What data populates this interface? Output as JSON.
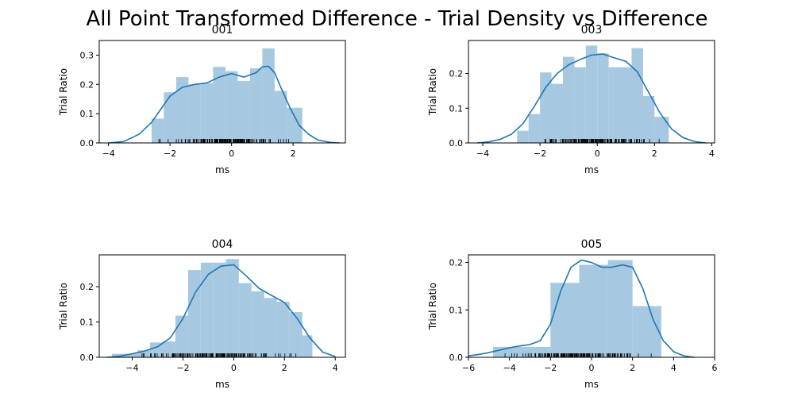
{
  "figure": {
    "suptitle": "All Point Transformed Difference - Trial Density vs Difference"
  },
  "colors": {
    "bar": "#a6c8e0",
    "kde": "#1f77b4",
    "rug": "#000000",
    "axes": "#000000"
  },
  "chart_data": [
    {
      "type": "bar",
      "title": "001",
      "xlabel": "ms",
      "ylabel": "Trial Ratio",
      "xlim": [
        -4.3,
        3.7
      ],
      "ylim": [
        0,
        0.35
      ],
      "xticks": [
        -4,
        -2,
        0,
        2
      ],
      "yticks": [
        0.0,
        0.1,
        0.2,
        0.3
      ],
      "ytick_decimals": 1,
      "bins": [
        {
          "x0": -2.6,
          "x1": -2.2,
          "value": 0.083
        },
        {
          "x0": -2.2,
          "x1": -1.8,
          "value": 0.173
        },
        {
          "x0": -1.8,
          "x1": -1.4,
          "value": 0.225
        },
        {
          "x0": -1.4,
          "x1": -1.0,
          "value": 0.2
        },
        {
          "x0": -1.0,
          "x1": -0.6,
          "value": 0.205
        },
        {
          "x0": -0.6,
          "x1": -0.2,
          "value": 0.26
        },
        {
          "x0": -0.2,
          "x1": 0.2,
          "value": 0.245
        },
        {
          "x0": 0.2,
          "x1": 0.6,
          "value": 0.212
        },
        {
          "x0": 0.6,
          "x1": 1.0,
          "value": 0.255
        },
        {
          "x0": 1.0,
          "x1": 1.4,
          "value": 0.323
        },
        {
          "x0": 1.4,
          "x1": 1.8,
          "value": 0.178
        },
        {
          "x0": 1.8,
          "x1": 2.3,
          "value": 0.12
        }
      ],
      "kde": {
        "x": [
          -4.0,
          -3.5,
          -3.0,
          -2.6,
          -2.3,
          -2.0,
          -1.6,
          -1.2,
          -0.8,
          -0.4,
          0.0,
          0.4,
          0.8,
          1.0,
          1.2,
          1.4,
          1.6,
          1.9,
          2.2,
          2.5,
          2.8,
          3.2,
          3.5
        ],
        "y": [
          0.0,
          0.005,
          0.03,
          0.07,
          0.115,
          0.16,
          0.19,
          0.2,
          0.205,
          0.225,
          0.237,
          0.225,
          0.24,
          0.26,
          0.262,
          0.24,
          0.19,
          0.12,
          0.06,
          0.03,
          0.01,
          0.002,
          0.0
        ]
      },
      "rug": [
        -2.6,
        2.3
      ]
    },
    {
      "type": "bar",
      "title": "003",
      "xlabel": "ms",
      "ylabel": "Trial Ratio",
      "xlim": [
        -4.5,
        4.1
      ],
      "ylim": [
        0,
        0.295
      ],
      "xticks": [
        -4,
        -2,
        0,
        2,
        4
      ],
      "yticks": [
        0.0,
        0.1,
        0.2
      ],
      "ytick_decimals": 1,
      "bins": [
        {
          "x0": -2.8,
          "x1": -2.4,
          "value": 0.035
        },
        {
          "x0": -2.4,
          "x1": -2.0,
          "value": 0.083
        },
        {
          "x0": -2.0,
          "x1": -1.6,
          "value": 0.203
        },
        {
          "x0": -1.6,
          "x1": -1.2,
          "value": 0.17
        },
        {
          "x0": -1.2,
          "x1": -0.8,
          "value": 0.248
        },
        {
          "x0": -0.8,
          "x1": -0.4,
          "value": 0.218
        },
        {
          "x0": -0.4,
          "x1": 0.0,
          "value": 0.28
        },
        {
          "x0": 0.0,
          "x1": 0.4,
          "value": 0.258
        },
        {
          "x0": 0.4,
          "x1": 0.8,
          "value": 0.218
        },
        {
          "x0": 0.8,
          "x1": 1.2,
          "value": 0.218
        },
        {
          "x0": 1.2,
          "x1": 1.6,
          "value": 0.273
        },
        {
          "x0": 1.6,
          "x1": 2.0,
          "value": 0.135
        },
        {
          "x0": 2.0,
          "x1": 2.5,
          "value": 0.075
        }
      ],
      "kde": {
        "x": [
          -4.2,
          -3.8,
          -3.4,
          -3.0,
          -2.6,
          -2.2,
          -1.8,
          -1.4,
          -1.0,
          -0.6,
          -0.2,
          0.2,
          0.6,
          1.0,
          1.4,
          1.8,
          2.2,
          2.6,
          3.0,
          3.4,
          3.8
        ],
        "y": [
          0.0,
          0.003,
          0.01,
          0.025,
          0.055,
          0.105,
          0.16,
          0.2,
          0.225,
          0.24,
          0.253,
          0.256,
          0.245,
          0.235,
          0.205,
          0.145,
          0.085,
          0.04,
          0.015,
          0.004,
          0.0
        ]
      },
      "rug": [
        -2.9,
        2.6
      ]
    },
    {
      "type": "bar",
      "title": "004",
      "xlabel": "ms",
      "ylabel": "Trial Ratio",
      "xlim": [
        -5.3,
        4.4
      ],
      "ylim": [
        0,
        0.29
      ],
      "xticks": [
        -4,
        -2,
        0,
        2,
        4
      ],
      "yticks": [
        0.0,
        0.1,
        0.2
      ],
      "ytick_decimals": 1,
      "bins": [
        {
          "x0": -4.8,
          "x1": -4.3,
          "value": 0.01
        },
        {
          "x0": -4.3,
          "x1": -3.8,
          "value": 0.01
        },
        {
          "x0": -3.8,
          "x1": -3.3,
          "value": 0.02
        },
        {
          "x0": -3.3,
          "x1": -2.8,
          "value": 0.042
        },
        {
          "x0": -2.8,
          "x1": -2.3,
          "value": 0.045
        },
        {
          "x0": -2.3,
          "x1": -1.8,
          "value": 0.118
        },
        {
          "x0": -1.8,
          "x1": -1.3,
          "value": 0.247
        },
        {
          "x0": -1.3,
          "x1": -0.8,
          "value": 0.268
        },
        {
          "x0": -0.8,
          "x1": -0.3,
          "value": 0.268
        },
        {
          "x0": -0.3,
          "x1": 0.2,
          "value": 0.278
        },
        {
          "x0": 0.2,
          "x1": 0.7,
          "value": 0.21
        },
        {
          "x0": 0.7,
          "x1": 1.2,
          "value": 0.187
        },
        {
          "x0": 1.2,
          "x1": 1.7,
          "value": 0.168
        },
        {
          "x0": 1.7,
          "x1": 2.2,
          "value": 0.157
        },
        {
          "x0": 2.2,
          "x1": 2.7,
          "value": 0.128
        },
        {
          "x0": 2.7,
          "x1": 3.1,
          "value": 0.062
        }
      ],
      "kde": {
        "x": [
          -5.0,
          -4.5,
          -4.0,
          -3.5,
          -3.0,
          -2.5,
          -2.0,
          -1.5,
          -1.0,
          -0.5,
          0.0,
          0.5,
          1.0,
          1.5,
          2.0,
          2.5,
          3.0,
          3.5,
          4.0
        ],
        "y": [
          0.0,
          0.003,
          0.01,
          0.018,
          0.03,
          0.055,
          0.11,
          0.185,
          0.235,
          0.258,
          0.262,
          0.23,
          0.195,
          0.175,
          0.155,
          0.11,
          0.055,
          0.015,
          0.002
        ]
      },
      "rug": [
        -4.6,
        2.9
      ]
    },
    {
      "type": "bar",
      "title": "005",
      "xlabel": "ms",
      "ylabel": "Trial Ratio",
      "xlim": [
        -6,
        6
      ],
      "ylim": [
        0,
        0.216
      ],
      "xticks": [
        -6,
        -4,
        -2,
        0,
        2,
        4,
        6
      ],
      "yticks": [
        0.0,
        0.1,
        0.2
      ],
      "ytick_decimals": 1,
      "bins": [
        {
          "x0": -4.8,
          "x1": -3.4,
          "value": 0.022
        },
        {
          "x0": -3.4,
          "x1": -2.0,
          "value": 0.022
        },
        {
          "x0": -2.0,
          "x1": -0.6,
          "value": 0.157
        },
        {
          "x0": -0.6,
          "x1": 0.8,
          "value": 0.195
        },
        {
          "x0": 0.8,
          "x1": 2.0,
          "value": 0.205
        },
        {
          "x0": 2.0,
          "x1": 3.4,
          "value": 0.108
        }
      ],
      "kde": {
        "x": [
          -6.0,
          -5.5,
          -5.0,
          -4.5,
          -4.0,
          -3.5,
          -3.0,
          -2.5,
          -2.0,
          -1.5,
          -1.0,
          -0.5,
          0.0,
          0.5,
          1.0,
          1.5,
          2.0,
          2.5,
          3.0,
          3.5,
          4.0,
          4.5,
          5.0
        ],
        "y": [
          0.003,
          0.006,
          0.01,
          0.015,
          0.02,
          0.024,
          0.027,
          0.035,
          0.07,
          0.14,
          0.19,
          0.205,
          0.2,
          0.19,
          0.19,
          0.195,
          0.19,
          0.145,
          0.08,
          0.035,
          0.012,
          0.003,
          0.0
        ]
      },
      "rug": [
        -5.0,
        3.3
      ]
    }
  ]
}
